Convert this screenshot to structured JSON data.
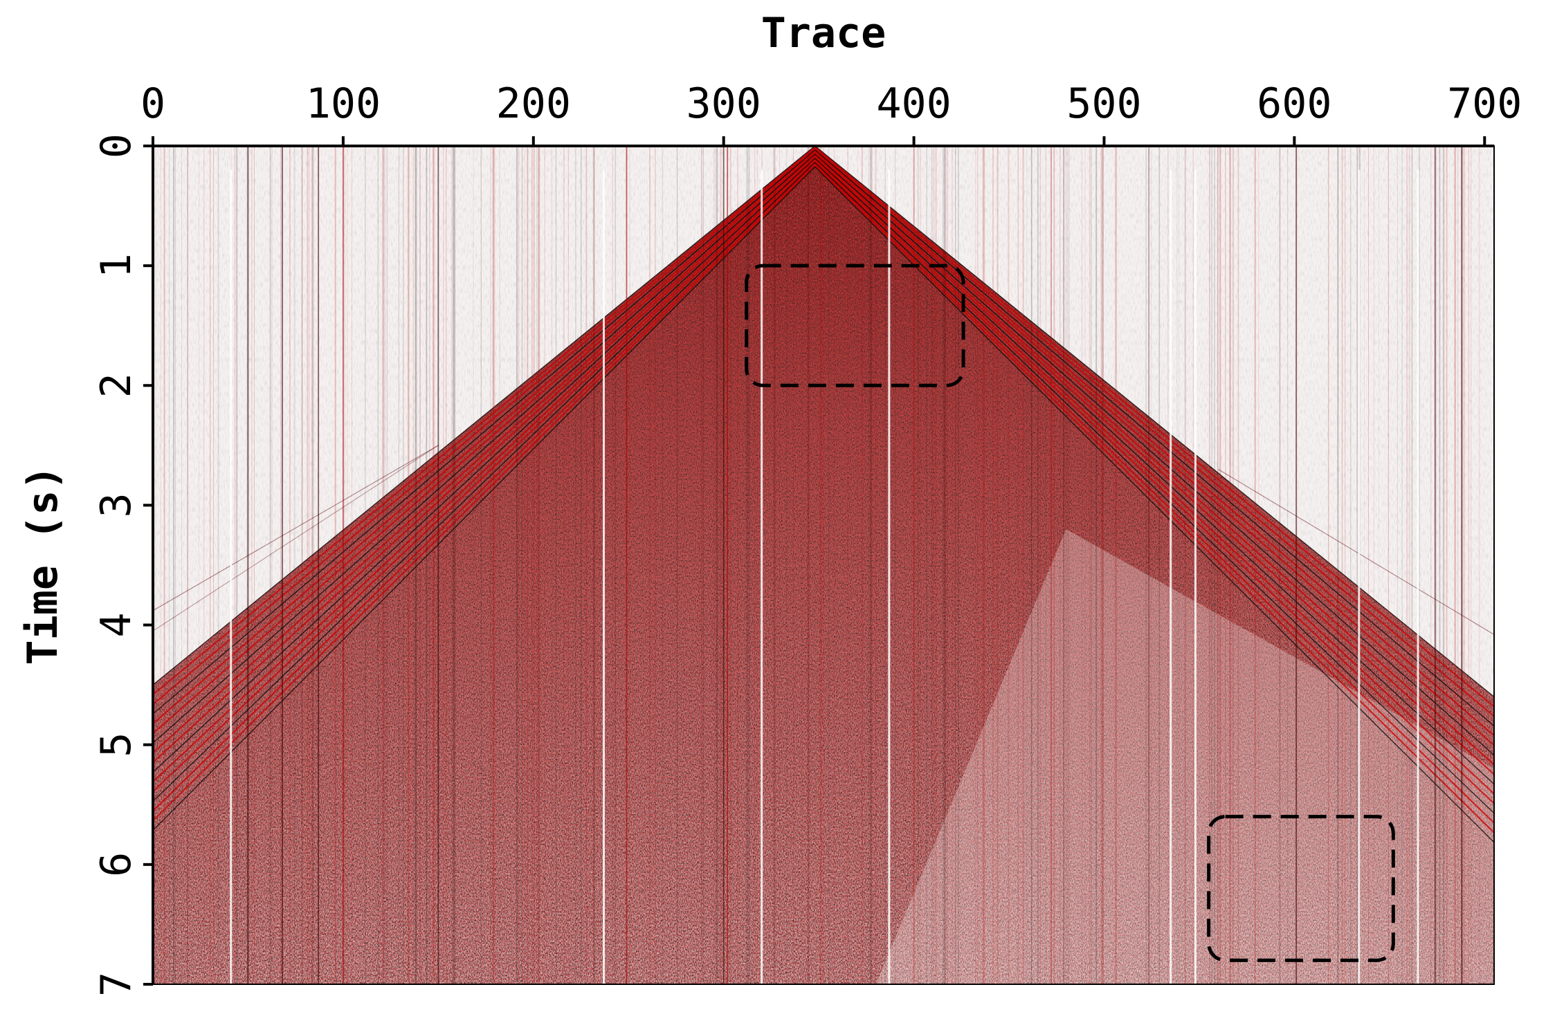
{
  "chart_data": {
    "type": "heatmap",
    "subtype": "seismic-shot-gather",
    "xlabel": "Trace",
    "ylabel": "Time (s)",
    "x_axis_position": "top",
    "y_axis_orientation": "downward",
    "xlim": [
      0,
      705
    ],
    "ylim": [
      0,
      7
    ],
    "x_ticks": [
      0,
      100,
      200,
      300,
      400,
      500,
      600,
      700
    ],
    "y_ticks": [
      0,
      1,
      2,
      3,
      4,
      5,
      6,
      7
    ],
    "colors": {
      "negative": "#000000",
      "zero": "#ffffff",
      "positive": "#e00000"
    },
    "first_arrival": {
      "apex_trace": 348,
      "apex_time": 0,
      "left_edge_time_at_trace_0": 4.5,
      "right_edge_time_at_trace_705": 4.6
    },
    "annotations": [
      {
        "shape": "dashed-rounded-rectangle",
        "trace_range": [
          312,
          426
        ],
        "time_range": [
          1.0,
          2.0
        ]
      },
      {
        "shape": "dashed-rounded-rectangle",
        "trace_range": [
          555,
          652
        ],
        "time_range": [
          5.6,
          6.8
        ]
      }
    ]
  }
}
